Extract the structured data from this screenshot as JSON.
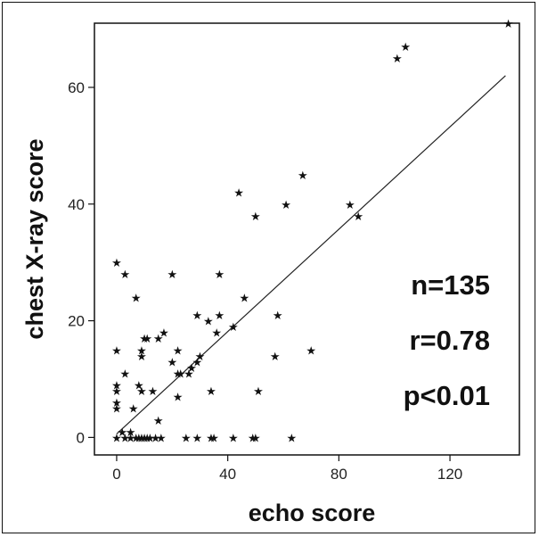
{
  "chart_data": {
    "type": "scatter",
    "xlabel": "echo score",
    "ylabel": "chest X-ray score",
    "xlim": [
      -8,
      145
    ],
    "ylim": [
      -3,
      71
    ],
    "x_ticks": [
      0,
      40,
      80,
      120
    ],
    "y_ticks": [
      0,
      20,
      40,
      60
    ],
    "grid": false,
    "marker": "star",
    "annotations": [
      "n=135",
      "r=0.78",
      "p<0.01"
    ],
    "regression_line": {
      "x": [
        0,
        140
      ],
      "y": [
        0.6,
        62
      ]
    },
    "points": [
      [
        141,
        71
      ],
      [
        104,
        67
      ],
      [
        101,
        65
      ],
      [
        44,
        42
      ],
      [
        67,
        45
      ],
      [
        50,
        38
      ],
      [
        61,
        40
      ],
      [
        84,
        40
      ],
      [
        87,
        38
      ],
      [
        0,
        30
      ],
      [
        3,
        28
      ],
      [
        20,
        28
      ],
      [
        37,
        28
      ],
      [
        7,
        24
      ],
      [
        46,
        24
      ],
      [
        29,
        21
      ],
      [
        37,
        21
      ],
      [
        58,
        21
      ],
      [
        33,
        20
      ],
      [
        42,
        19
      ],
      [
        17,
        18
      ],
      [
        15,
        17
      ],
      [
        10,
        17
      ],
      [
        11,
        17
      ],
      [
        36,
        18
      ],
      [
        0,
        15
      ],
      [
        9,
        15
      ],
      [
        9,
        14
      ],
      [
        22,
        15
      ],
      [
        70,
        15
      ],
      [
        57,
        14
      ],
      [
        20,
        13
      ],
      [
        30,
        14
      ],
      [
        29,
        13
      ],
      [
        27,
        12
      ],
      [
        26,
        11
      ],
      [
        23,
        11
      ],
      [
        3,
        11
      ],
      [
        22,
        11
      ],
      [
        0,
        9
      ],
      [
        0,
        8
      ],
      [
        8,
        9
      ],
      [
        9,
        8
      ],
      [
        13,
        8
      ],
      [
        22,
        7
      ],
      [
        34,
        8
      ],
      [
        51,
        8
      ],
      [
        0,
        6
      ],
      [
        0,
        5
      ],
      [
        6,
        5
      ],
      [
        15,
        3
      ],
      [
        2,
        1
      ],
      [
        5,
        1
      ],
      [
        0,
        0
      ],
      [
        3,
        0
      ],
      [
        5,
        0
      ],
      [
        7,
        0
      ],
      [
        8,
        0
      ],
      [
        9,
        0
      ],
      [
        10,
        0
      ],
      [
        11,
        0
      ],
      [
        12,
        0
      ],
      [
        14,
        0
      ],
      [
        16,
        0
      ],
      [
        25,
        0
      ],
      [
        29,
        0
      ],
      [
        34,
        0
      ],
      [
        35,
        0
      ],
      [
        42,
        0
      ],
      [
        49,
        0
      ],
      [
        50,
        0
      ],
      [
        63,
        0
      ]
    ]
  }
}
